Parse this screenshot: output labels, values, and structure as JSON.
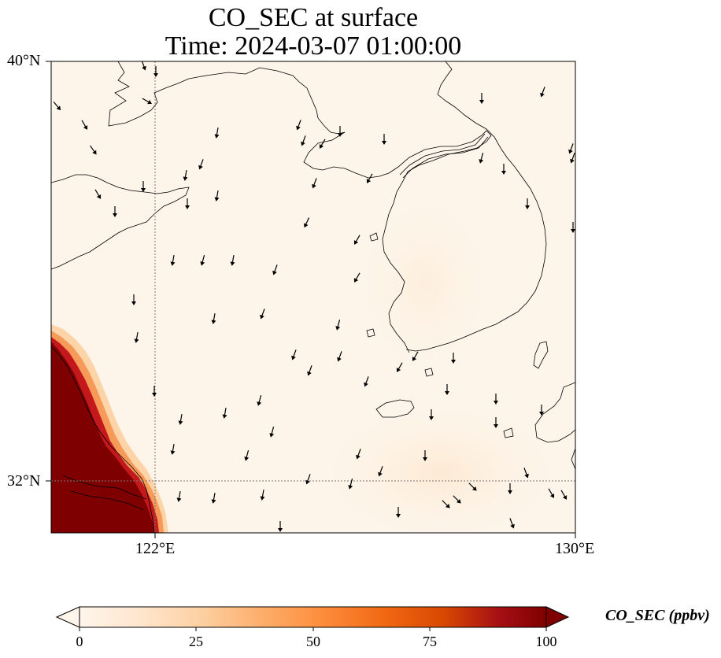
{
  "map": {
    "title_line1": "CO_SEC at surface",
    "title_line2": "Time: 2024-03-07 01:00:00",
    "lat_labels": [
      "40°N",
      "32°N"
    ],
    "lon_labels": [
      "122°E",
      "130°E"
    ],
    "extent": {
      "lon_min": 120,
      "lon_max": 130,
      "lat_min": 31,
      "lat_max": 40
    },
    "gridlines": {
      "lons": [
        122
      ],
      "lats": [
        32
      ],
      "style": "dotted"
    },
    "field": {
      "variable": "CO_SEC",
      "high_value_region": "southwest corner (Chinese coast / Yangtze delta)",
      "background_value": "near 0"
    },
    "wind_vectors": "shown",
    "coastlines": "shown"
  },
  "colorbar": {
    "label": "CO_SEC (ppbv)",
    "ticks": [
      "0",
      "25",
      "50",
      "75",
      "100"
    ],
    "min": 0,
    "max": 100,
    "extend": "both",
    "colormap": [
      "#fff5eb",
      "#fee6ce",
      "#fdd0a2",
      "#fdae6b",
      "#fd8d3c",
      "#f16913",
      "#d94801",
      "#a50f15",
      "#7f0000"
    ]
  }
}
